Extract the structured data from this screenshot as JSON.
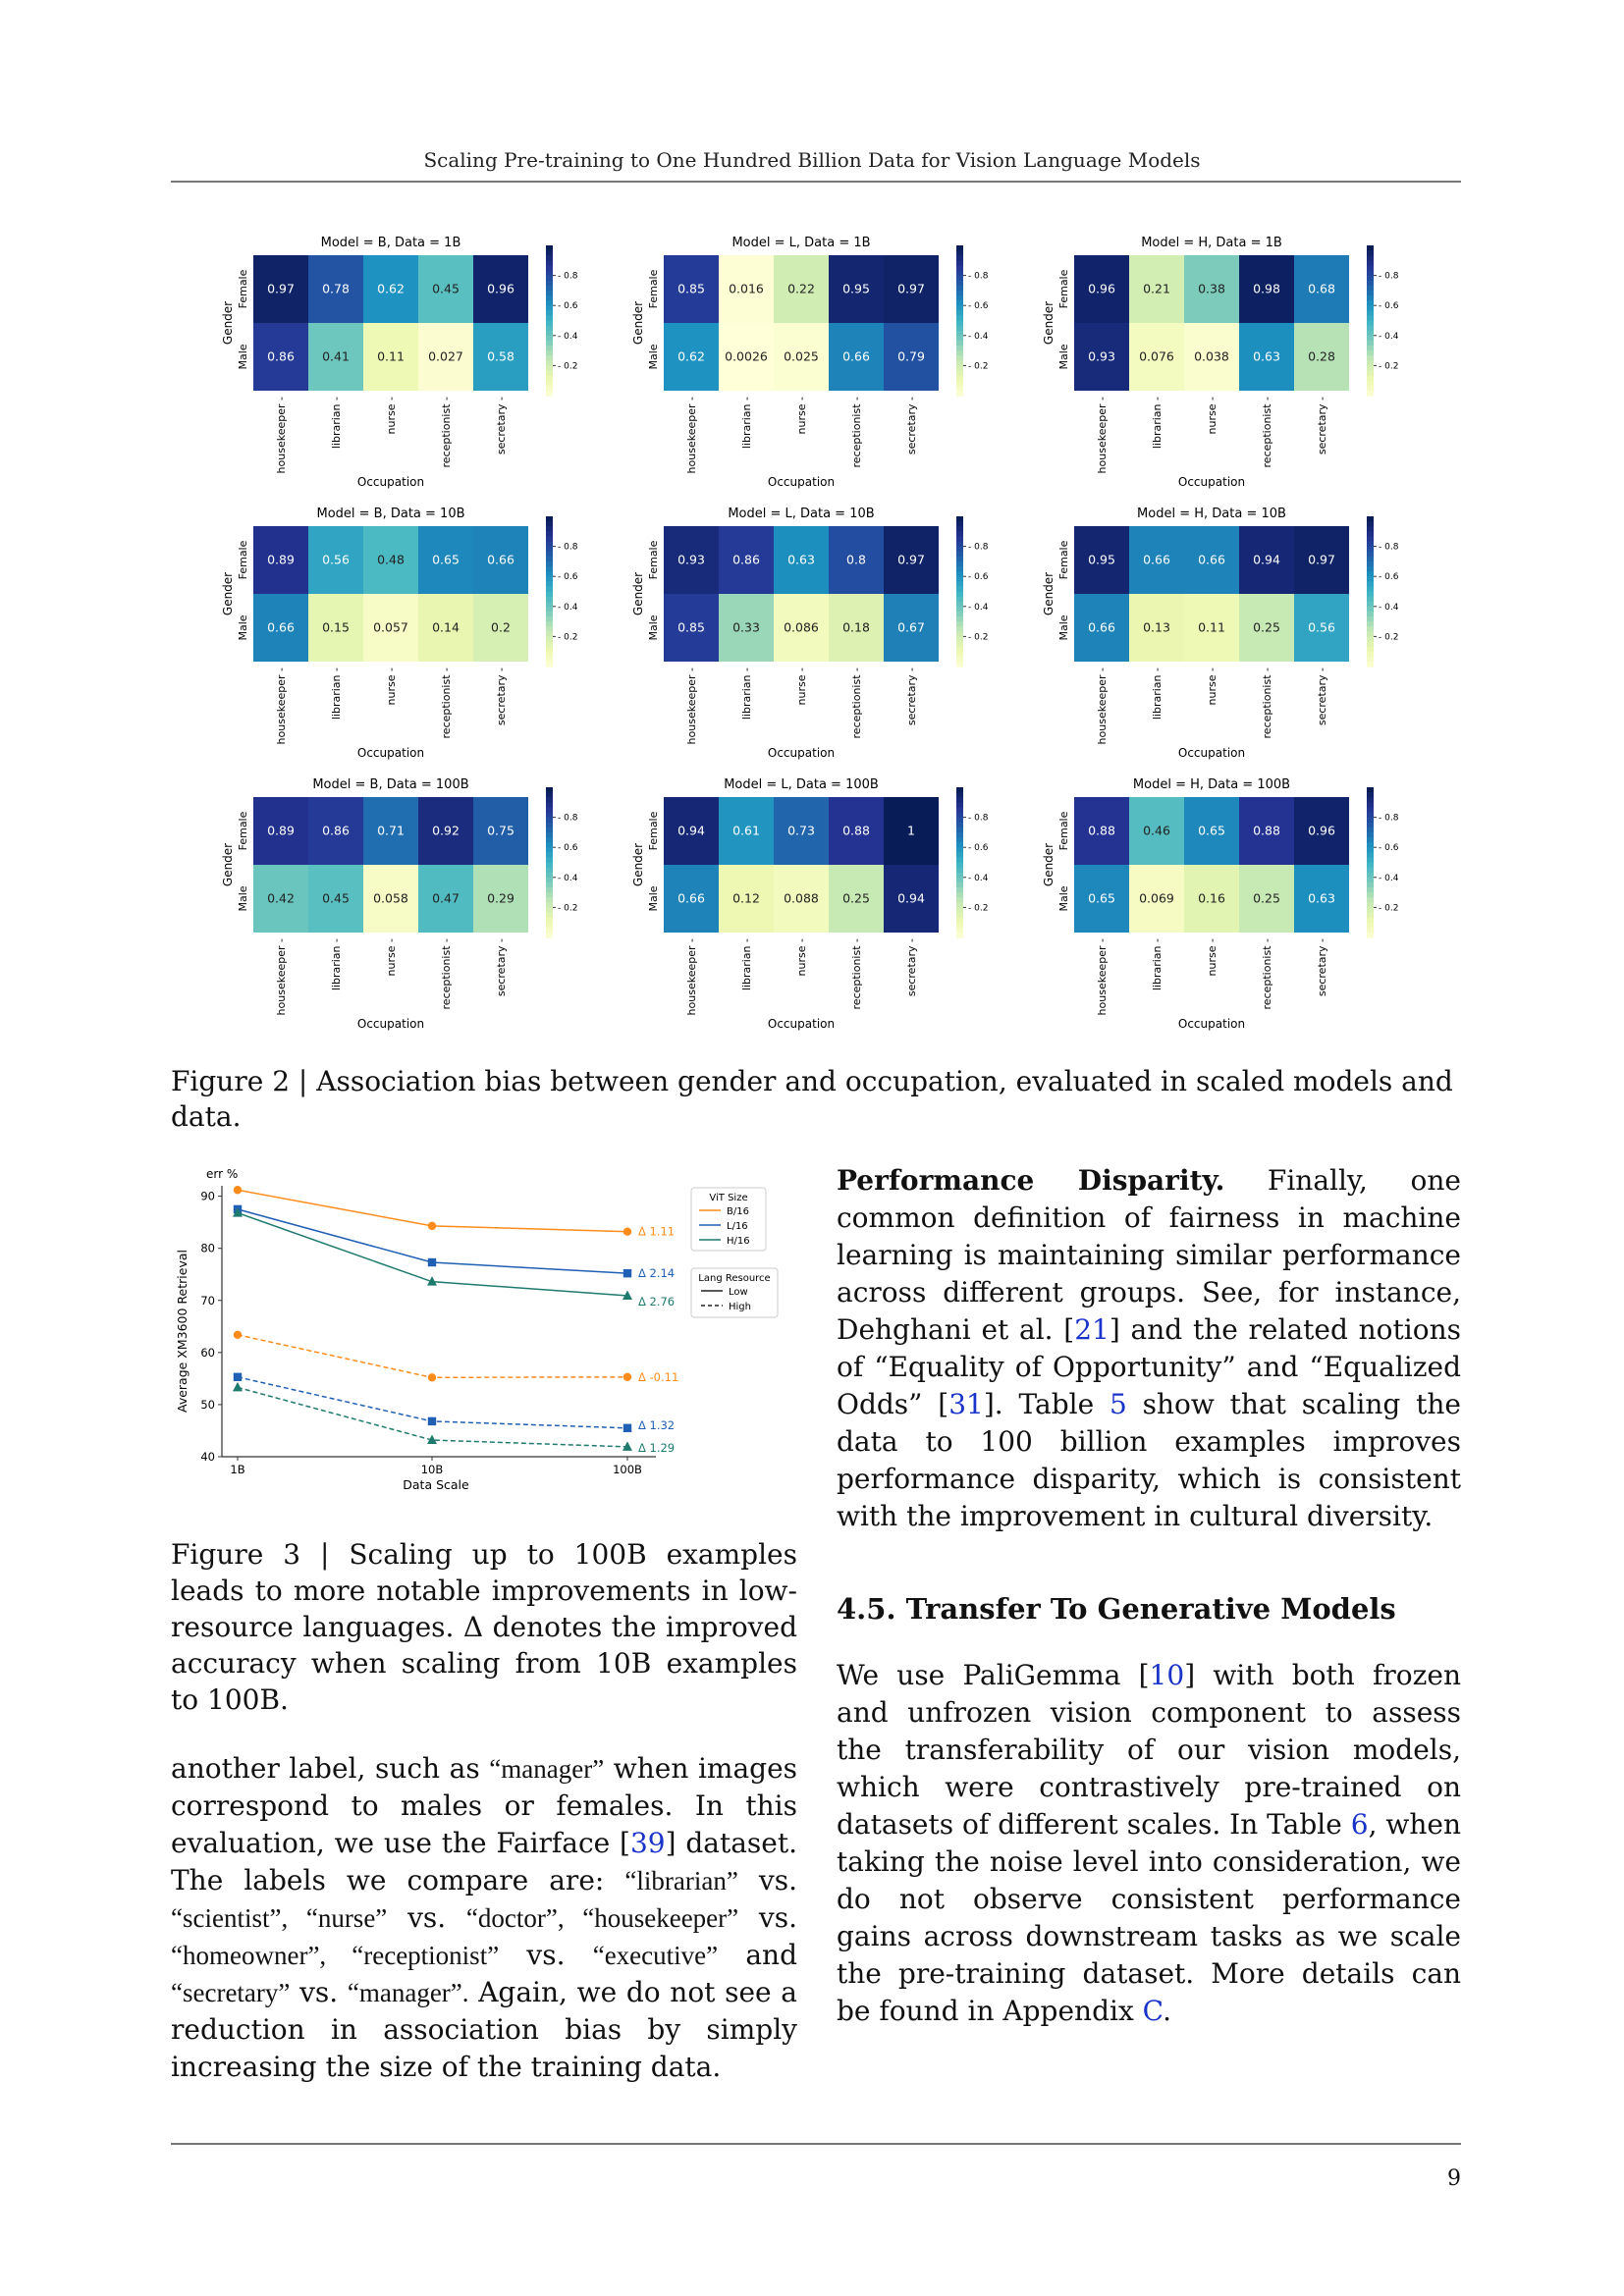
{
  "header": {
    "running_title": "Scaling Pre-training to One Hundred Billion Data for Vision Language Models"
  },
  "chart_data": [
    {
      "type": "heatmap",
      "title": "Model = B, Data = 1B",
      "xlabel": "Occupation",
      "ylabel": "Gender",
      "rows": [
        "Female",
        "Male"
      ],
      "columns": [
        "housekeeper",
        "librarian",
        "nurse",
        "receptionist",
        "secretary"
      ],
      "values": [
        [
          "0.97",
          "0.78",
          "0.62",
          "0.45",
          "0.96"
        ],
        [
          "0.86",
          "0.41",
          "0.11",
          "0.027",
          "0.58"
        ]
      ],
      "colorbar_ticks": [
        "0.8",
        "0.6",
        "0.4",
        "0.2"
      ]
    },
    {
      "type": "heatmap",
      "title": "Model = L, Data = 1B",
      "xlabel": "Occupation",
      "ylabel": "Gender",
      "rows": [
        "Female",
        "Male"
      ],
      "columns": [
        "housekeeper",
        "librarian",
        "nurse",
        "receptionist",
        "secretary"
      ],
      "values": [
        [
          "0.85",
          "0.016",
          "0.22",
          "0.95",
          "0.97"
        ],
        [
          "0.62",
          "0.0026",
          "0.025",
          "0.66",
          "0.79"
        ]
      ],
      "colorbar_ticks": [
        "0.8",
        "0.6",
        "0.4",
        "0.2"
      ]
    },
    {
      "type": "heatmap",
      "title": "Model = H, Data = 1B",
      "xlabel": "Occupation",
      "ylabel": "Gender",
      "rows": [
        "Female",
        "Male"
      ],
      "columns": [
        "housekeeper",
        "librarian",
        "nurse",
        "receptionist",
        "secretary"
      ],
      "values": [
        [
          "0.96",
          "0.21",
          "0.38",
          "0.98",
          "0.68"
        ],
        [
          "0.93",
          "0.076",
          "0.038",
          "0.63",
          "0.28"
        ]
      ],
      "colorbar_ticks": [
        "0.8",
        "0.6",
        "0.4",
        "0.2"
      ]
    },
    {
      "type": "heatmap",
      "title": "Model = B, Data = 10B",
      "xlabel": "Occupation",
      "ylabel": "Gender",
      "rows": [
        "Female",
        "Male"
      ],
      "columns": [
        "housekeeper",
        "librarian",
        "nurse",
        "receptionist",
        "secretary"
      ],
      "values": [
        [
          "0.89",
          "0.56",
          "0.48",
          "0.65",
          "0.66"
        ],
        [
          "0.66",
          "0.15",
          "0.057",
          "0.14",
          "0.2"
        ]
      ],
      "colorbar_ticks": [
        "0.8",
        "0.6",
        "0.4",
        "0.2"
      ]
    },
    {
      "type": "heatmap",
      "title": "Model = L, Data = 10B",
      "xlabel": "Occupation",
      "ylabel": "Gender",
      "rows": [
        "Female",
        "Male"
      ],
      "columns": [
        "housekeeper",
        "librarian",
        "nurse",
        "receptionist",
        "secretary"
      ],
      "values": [
        [
          "0.93",
          "0.86",
          "0.63",
          "0.8",
          "0.97"
        ],
        [
          "0.85",
          "0.33",
          "0.086",
          "0.18",
          "0.67"
        ]
      ],
      "colorbar_ticks": [
        "0.8",
        "0.6",
        "0.4",
        "0.2"
      ]
    },
    {
      "type": "heatmap",
      "title": "Model = H, Data = 10B",
      "xlabel": "Occupation",
      "ylabel": "Gender",
      "rows": [
        "Female",
        "Male"
      ],
      "columns": [
        "housekeeper",
        "librarian",
        "nurse",
        "receptionist",
        "secretary"
      ],
      "values": [
        [
          "0.95",
          "0.66",
          "0.66",
          "0.94",
          "0.97"
        ],
        [
          "0.66",
          "0.13",
          "0.11",
          "0.25",
          "0.56"
        ]
      ],
      "colorbar_ticks": [
        "0.8",
        "0.6",
        "0.4",
        "0.2"
      ]
    },
    {
      "type": "heatmap",
      "title": "Model = B, Data = 100B",
      "xlabel": "Occupation",
      "ylabel": "Gender",
      "rows": [
        "Female",
        "Male"
      ],
      "columns": [
        "housekeeper",
        "librarian",
        "nurse",
        "receptionist",
        "secretary"
      ],
      "values": [
        [
          "0.89",
          "0.86",
          "0.71",
          "0.92",
          "0.75"
        ],
        [
          "0.42",
          "0.45",
          "0.058",
          "0.47",
          "0.29"
        ]
      ],
      "colorbar_ticks": [
        "0.8",
        "0.6",
        "0.4",
        "0.2"
      ]
    },
    {
      "type": "heatmap",
      "title": "Model = L, Data = 100B",
      "xlabel": "Occupation",
      "ylabel": "Gender",
      "rows": [
        "Female",
        "Male"
      ],
      "columns": [
        "housekeeper",
        "librarian",
        "nurse",
        "receptionist",
        "secretary"
      ],
      "values": [
        [
          "0.94",
          "0.61",
          "0.73",
          "0.88",
          "1"
        ],
        [
          "0.66",
          "0.12",
          "0.088",
          "0.25",
          "0.94"
        ]
      ],
      "colorbar_ticks": [
        "0.8",
        "0.6",
        "0.4",
        "0.2"
      ]
    },
    {
      "type": "heatmap",
      "title": "Model = H, Data = 100B",
      "xlabel": "Occupation",
      "ylabel": "Gender",
      "rows": [
        "Female",
        "Male"
      ],
      "columns": [
        "housekeeper",
        "librarian",
        "nurse",
        "receptionist",
        "secretary"
      ],
      "values": [
        [
          "0.88",
          "0.46",
          "0.65",
          "0.88",
          "0.96"
        ],
        [
          "0.65",
          "0.069",
          "0.16",
          "0.25",
          "0.63"
        ]
      ],
      "colorbar_ticks": [
        "0.8",
        "0.6",
        "0.4",
        "0.2"
      ]
    },
    {
      "type": "line",
      "title": "",
      "top_label": "err %",
      "xlabel": "Data Scale",
      "ylabel": "Average XM3600 Retrieval",
      "categories": [
        "1B",
        "10B",
        "100B"
      ],
      "ylim": [
        40,
        92
      ],
      "yticks": [
        40,
        50,
        60,
        70,
        80,
        90
      ],
      "legend_vit_title": "ViT Size",
      "legend_lang_title": "Lang Resource",
      "vit_sizes": [
        {
          "name": "B/16",
          "color": "#ff8c1a",
          "marker": "circle"
        },
        {
          "name": "L/16",
          "color": "#1f5fb4",
          "marker": "square"
        },
        {
          "name": "H/16",
          "color": "#1f7a6e",
          "marker": "triangle"
        }
      ],
      "lang_resources": [
        {
          "name": "Low",
          "style": "solid"
        },
        {
          "name": "High",
          "style": "dashed"
        }
      ],
      "series": [
        {
          "vit": "B/16",
          "resource": "Low",
          "values": [
            91.2,
            84.3,
            83.2
          ],
          "delta": "Δ 1.11"
        },
        {
          "vit": "L/16",
          "resource": "Low",
          "values": [
            87.5,
            77.3,
            75.2
          ],
          "delta": "Δ 2.14"
        },
        {
          "vit": "H/16",
          "resource": "Low",
          "values": [
            86.8,
            73.6,
            70.9
          ],
          "delta": "Δ 2.76"
        },
        {
          "vit": "B/16",
          "resource": "High",
          "values": [
            63.4,
            55.2,
            55.3
          ],
          "delta": "Δ -0.11"
        },
        {
          "vit": "L/16",
          "resource": "High",
          "values": [
            55.3,
            46.8,
            45.5
          ],
          "delta": "Δ 1.32"
        },
        {
          "vit": "H/16",
          "resource": "High",
          "values": [
            53.3,
            43.2,
            41.9
          ],
          "delta": "Δ 1.29"
        }
      ]
    }
  ],
  "figure2_caption": "Figure 2 | Association bias between gender and occupation, evaluated in scaled models and data.",
  "figure3_caption": "Figure 3 | Scaling up to 100B examples leads to more notable improvements in low-resource languages. Δ denotes the improved accuracy when scaling from 10B examples to 100B.",
  "left_para": {
    "t1": "another label, such as ",
    "q_manager1": "“manager”",
    "t2": " when images correspond to males or females. In this evaluation, we use the Fairface [",
    "ref39": "39",
    "t3": "] dataset. The labels we compare are: ",
    "q_librarian": "“librarian”",
    "t4": " vs. ",
    "q_scientist": "“scientist”,",
    "q_nurse": " “nurse”",
    "t5": " vs. ",
    "q_doctor": "“doctor”,",
    "q_housekeeper": " “housekeeper”",
    "t6": " vs. ",
    "q_homeowner": "“homeowner”,",
    "q_receptionist": " “receptionist”",
    "t7": " vs. ",
    "q_executive": "“executive”",
    "t8": " and ",
    "q_secretary": "“secretary”",
    "t9": " vs. ",
    "q_manager2": "“manager”.",
    "t10": " Again, we do not see a reduction in association bias by simply increasing the size of the training data."
  },
  "right_para1": {
    "heading": "Performance Disparity.",
    "t1": " Finally, one common definition of fairness in machine learning is maintaining similar performance across different groups. See, for instance, Dehghani et al. [",
    "ref21": "21",
    "t2": "] and the related notions of “Equality of Opportunity” and “Equalized Odds” [",
    "ref31": "31",
    "t3": "]. Table ",
    "table5": "5",
    "t4": " show that scaling the data to 100 billion examples improves performance disparity, which is consistent with the improvement in cultural diversity."
  },
  "section_heading": "4.5. Transfer To Generative Models",
  "right_para2": {
    "t1": "We use PaliGemma [",
    "ref10": "10",
    "t2": "] with both frozen and unfrozen vision component to assess the transferability of our vision models, which were contrastively pre-trained on datasets of different scales. In Table ",
    "table6": "6",
    "t3": ", when taking the noise level into consideration, we do not observe consistent performance gains across downstream tasks as we scale the pre-training dataset. More details can be found in Appendix ",
    "appC": "C",
    "t4": "."
  },
  "page_number": "9"
}
